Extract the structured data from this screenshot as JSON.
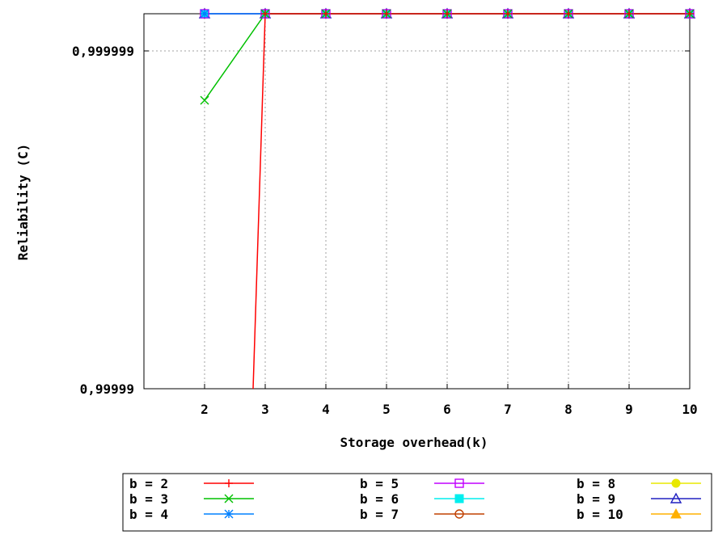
{
  "chart_data": {
    "type": "line",
    "xlabel": "Storage overhead(k)",
    "ylabel": "Reliability (C)",
    "y_scale": "log(1 - C)",
    "x_ticks": [
      "2",
      "3",
      "4",
      "5",
      "6",
      "7",
      "8",
      "9",
      "10"
    ],
    "y_ticks": [
      "0,999999",
      "0,99999"
    ],
    "xlim": [
      1,
      10
    ],
    "ylim": [
      0.99999,
      1.0
    ],
    "grid": true,
    "legend_position": "bottom",
    "series": [
      {
        "name": "b = 2",
        "color": "#ff0000",
        "marker": "plus",
        "points": [
          [
            2.8,
            0.99999
          ],
          [
            3,
            0.9999993
          ],
          [
            4,
            1.0
          ],
          [
            5,
            1.0
          ],
          [
            6,
            1.0
          ],
          [
            7,
            1.0
          ],
          [
            8,
            1.0
          ],
          [
            9,
            1.0
          ],
          [
            10,
            1.0
          ]
        ]
      },
      {
        "name": "b = 3",
        "color": "#00c000",
        "marker": "cross",
        "points": [
          [
            2,
            0.9999986
          ],
          [
            3,
            1.0
          ],
          [
            4,
            1.0
          ],
          [
            5,
            1.0
          ],
          [
            6,
            1.0
          ],
          [
            7,
            1.0
          ],
          [
            8,
            1.0
          ],
          [
            9,
            1.0
          ],
          [
            10,
            1.0
          ]
        ]
      },
      {
        "name": "b = 4",
        "color": "#0080ff",
        "marker": "star",
        "points": [
          [
            2,
            1.0
          ],
          [
            3,
            1.0
          ],
          [
            4,
            1.0
          ],
          [
            5,
            1.0
          ],
          [
            6,
            1.0
          ],
          [
            7,
            1.0
          ],
          [
            8,
            1.0
          ],
          [
            9,
            1.0
          ],
          [
            10,
            1.0
          ]
        ]
      },
      {
        "name": "b = 5",
        "color": "#c000ff",
        "marker": "square",
        "points": [
          [
            2,
            1.0
          ],
          [
            3,
            1.0
          ],
          [
            4,
            1.0
          ],
          [
            5,
            1.0
          ],
          [
            6,
            1.0
          ],
          [
            7,
            1.0
          ],
          [
            8,
            1.0
          ],
          [
            9,
            1.0
          ],
          [
            10,
            1.0
          ]
        ]
      },
      {
        "name": "b = 6",
        "color": "#00eeee",
        "marker": "filled-square",
        "points": [
          [
            2,
            1.0
          ],
          [
            3,
            1.0
          ],
          [
            4,
            1.0
          ],
          [
            5,
            1.0
          ],
          [
            6,
            1.0
          ],
          [
            7,
            1.0
          ],
          [
            8,
            1.0
          ],
          [
            9,
            1.0
          ],
          [
            10,
            1.0
          ]
        ]
      },
      {
        "name": "b = 7",
        "color": "#c04000",
        "marker": "circle",
        "points": [
          [
            2,
            1.0
          ],
          [
            3,
            1.0
          ],
          [
            4,
            1.0
          ],
          [
            5,
            1.0
          ],
          [
            6,
            1.0
          ],
          [
            7,
            1.0
          ],
          [
            8,
            1.0
          ],
          [
            9,
            1.0
          ],
          [
            10,
            1.0
          ]
        ]
      },
      {
        "name": "b = 8",
        "color": "#e8e800",
        "marker": "filled-circle",
        "points": [
          [
            2,
            1.0
          ],
          [
            3,
            1.0
          ],
          [
            4,
            1.0
          ],
          [
            5,
            1.0
          ],
          [
            6,
            1.0
          ],
          [
            7,
            1.0
          ],
          [
            8,
            1.0
          ],
          [
            9,
            1.0
          ],
          [
            10,
            1.0
          ]
        ]
      },
      {
        "name": "b = 9",
        "color": "#2020c0",
        "marker": "triangle",
        "points": [
          [
            2,
            1.0
          ],
          [
            3,
            1.0
          ],
          [
            4,
            1.0
          ],
          [
            5,
            1.0
          ],
          [
            6,
            1.0
          ],
          [
            7,
            1.0
          ],
          [
            8,
            1.0
          ],
          [
            9,
            1.0
          ],
          [
            10,
            1.0
          ]
        ]
      },
      {
        "name": "b = 10",
        "color": "#ffb000",
        "marker": "filled-triangle",
        "points": [
          [
            2,
            1.0
          ],
          [
            3,
            1.0
          ],
          [
            4,
            1.0
          ],
          [
            5,
            1.0
          ],
          [
            6,
            1.0
          ],
          [
            7,
            1.0
          ],
          [
            8,
            1.0
          ],
          [
            9,
            1.0
          ],
          [
            10,
            1.0
          ]
        ]
      }
    ]
  }
}
